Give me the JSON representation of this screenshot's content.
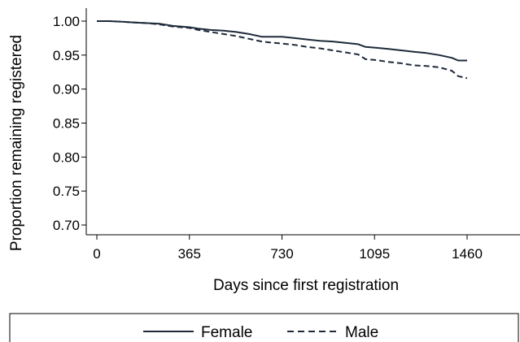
{
  "chart_data": {
    "type": "line",
    "title": "",
    "xlabel": "Days since first registration",
    "ylabel": "Proportion remaining registered",
    "xlim": [
      0,
      1460
    ],
    "ylim": [
      0.7,
      1.0
    ],
    "x_ticks": [
      0,
      365,
      730,
      1095,
      1460
    ],
    "x_tick_labels": [
      "0",
      "365",
      "730",
      "1095",
      "1460"
    ],
    "y_ticks": [
      0.7,
      0.75,
      0.8,
      0.85,
      0.9,
      0.95,
      1.0
    ],
    "y_tick_labels": [
      "0.70",
      "0.75",
      "0.80",
      "0.85",
      "0.90",
      "0.95",
      "1.00"
    ],
    "grid": false,
    "legend_position": "bottom",
    "series": [
      {
        "name": "Female",
        "color": "#1e2a3a",
        "style": "solid",
        "x": [
          0,
          50,
          100,
          150,
          200,
          250,
          300,
          365,
          400,
          450,
          500,
          550,
          600,
          650,
          700,
          730,
          780,
          830,
          880,
          930,
          980,
          1030,
          1060,
          1095,
          1150,
          1200,
          1250,
          1300,
          1350,
          1400,
          1425,
          1460
        ],
        "y": [
          1.0,
          1.0,
          0.999,
          0.998,
          0.997,
          0.996,
          0.993,
          0.991,
          0.989,
          0.987,
          0.986,
          0.984,
          0.981,
          0.977,
          0.977,
          0.977,
          0.975,
          0.973,
          0.971,
          0.97,
          0.968,
          0.966,
          0.962,
          0.961,
          0.959,
          0.957,
          0.955,
          0.953,
          0.95,
          0.946,
          0.942,
          0.942
        ]
      },
      {
        "name": "Male",
        "color": "#1e2a3a",
        "style": "dashed",
        "x": [
          0,
          50,
          100,
          150,
          200,
          250,
          300,
          365,
          400,
          450,
          500,
          550,
          600,
          650,
          700,
          730,
          780,
          830,
          880,
          930,
          980,
          1030,
          1060,
          1095,
          1150,
          1200,
          1250,
          1300,
          1350,
          1400,
          1425,
          1460
        ],
        "y": [
          1.0,
          1.0,
          0.999,
          0.998,
          0.997,
          0.995,
          0.992,
          0.99,
          0.987,
          0.984,
          0.981,
          0.978,
          0.974,
          0.97,
          0.968,
          0.967,
          0.965,
          0.962,
          0.96,
          0.957,
          0.954,
          0.951,
          0.944,
          0.943,
          0.94,
          0.938,
          0.935,
          0.934,
          0.932,
          0.927,
          0.919,
          0.916
        ]
      }
    ]
  }
}
